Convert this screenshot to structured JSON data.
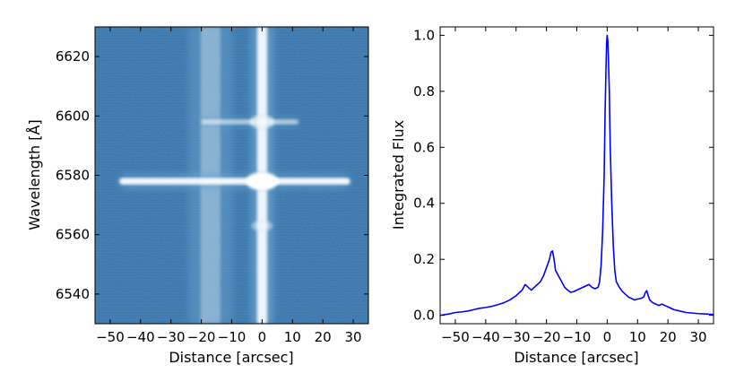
{
  "chart_data": [
    {
      "type": "heatmap",
      "xlabel": "Distance [arcsec]",
      "ylabel": "Wavelength [Å]",
      "xlim": [
        -55,
        35
      ],
      "ylim": [
        6530,
        6630
      ],
      "xticks": [
        -50,
        -40,
        -30,
        -20,
        -10,
        0,
        10,
        20,
        30
      ],
      "xtick_labels": [
        "−50",
        "−40",
        "−30",
        "−20",
        "−10",
        "0",
        "10",
        "20",
        "30"
      ],
      "yticks": [
        6540,
        6560,
        6580,
        6600,
        6620
      ],
      "ytick_labels": [
        "6540",
        "6560",
        "6580",
        "6600",
        "6620"
      ],
      "colormap": {
        "low": "#2e6fa7",
        "mid": "#6aa4cf",
        "high": "#ffffff"
      },
      "grid": false,
      "features": [
        {
          "kind": "continuum",
          "x": 0,
          "width": 1.2,
          "intensity": 1.0
        },
        {
          "kind": "continuum",
          "x": -17,
          "width": 2.4,
          "intensity": 0.35
        },
        {
          "kind": "emission_line",
          "wavelength": 6578,
          "x_min": -47,
          "x_max": 29,
          "peak_x": 0,
          "intensity": 1.0
        },
        {
          "kind": "emission_line",
          "wavelength": 6598,
          "x_min": -20,
          "x_max": 12,
          "peak_x": 0,
          "intensity": 0.6
        },
        {
          "kind": "emission_line",
          "wavelength": 6563,
          "x_min": -2,
          "x_max": 2,
          "peak_x": 0,
          "intensity": 0.4
        }
      ]
    },
    {
      "type": "line",
      "xlabel": "Distance [arcsec]",
      "ylabel": "Integrated Flux",
      "xlim": [
        -55,
        35
      ],
      "ylim": [
        -0.03,
        1.03
      ],
      "xticks": [
        -50,
        -40,
        -30,
        -20,
        -10,
        0,
        10,
        20,
        30
      ],
      "xtick_labels": [
        "−50",
        "−40",
        "−30",
        "−20",
        "−10",
        "0",
        "10",
        "20",
        "30"
      ],
      "yticks": [
        0.0,
        0.2,
        0.4,
        0.6,
        0.8,
        1.0
      ],
      "ytick_labels": [
        "0.0",
        "0.2",
        "0.4",
        "0.6",
        "0.8",
        "1.0"
      ],
      "grid": false,
      "line_color": "#0000ff",
      "series": [
        {
          "x": [
            -55,
            -52,
            -50,
            -48,
            -46,
            -44,
            -42,
            -40,
            -38,
            -36,
            -34,
            -32,
            -30,
            -29,
            -28,
            -27,
            -26,
            -25,
            -24,
            -23,
            -22,
            -21,
            -20,
            -19,
            -18.5,
            -18,
            -17.5,
            -17,
            -16,
            -15,
            -14,
            -13,
            -12,
            -11,
            -10,
            -9,
            -8,
            -7,
            -6,
            -5,
            -4,
            -3,
            -2.5,
            -2,
            -1.5,
            -1,
            -0.7,
            -0.4,
            -0.2,
            0,
            0.2,
            0.4,
            0.7,
            1,
            1.5,
            2,
            2.5,
            3,
            4,
            5,
            6,
            7,
            8,
            9,
            10,
            11,
            12,
            12.5,
            13,
            13.5,
            14,
            15,
            16,
            17,
            18,
            19,
            20,
            22,
            24,
            26,
            28,
            30,
            32,
            35
          ],
          "y": [
            0.0,
            0.005,
            0.01,
            0.012,
            0.015,
            0.02,
            0.025,
            0.028,
            0.032,
            0.038,
            0.045,
            0.055,
            0.07,
            0.08,
            0.09,
            0.11,
            0.1,
            0.09,
            0.1,
            0.11,
            0.12,
            0.14,
            0.17,
            0.2,
            0.225,
            0.23,
            0.2,
            0.16,
            0.14,
            0.12,
            0.1,
            0.09,
            0.082,
            0.085,
            0.09,
            0.095,
            0.1,
            0.105,
            0.11,
            0.1,
            0.095,
            0.1,
            0.12,
            0.18,
            0.3,
            0.5,
            0.72,
            0.88,
            0.97,
            1.0,
            0.98,
            0.92,
            0.8,
            0.6,
            0.4,
            0.25,
            0.16,
            0.12,
            0.1,
            0.085,
            0.075,
            0.065,
            0.06,
            0.055,
            0.058,
            0.06,
            0.065,
            0.08,
            0.088,
            0.07,
            0.055,
            0.045,
            0.04,
            0.035,
            0.04,
            0.035,
            0.03,
            0.02,
            0.015,
            0.01,
            0.008,
            0.006,
            0.005,
            0.003
          ]
        }
      ]
    }
  ]
}
